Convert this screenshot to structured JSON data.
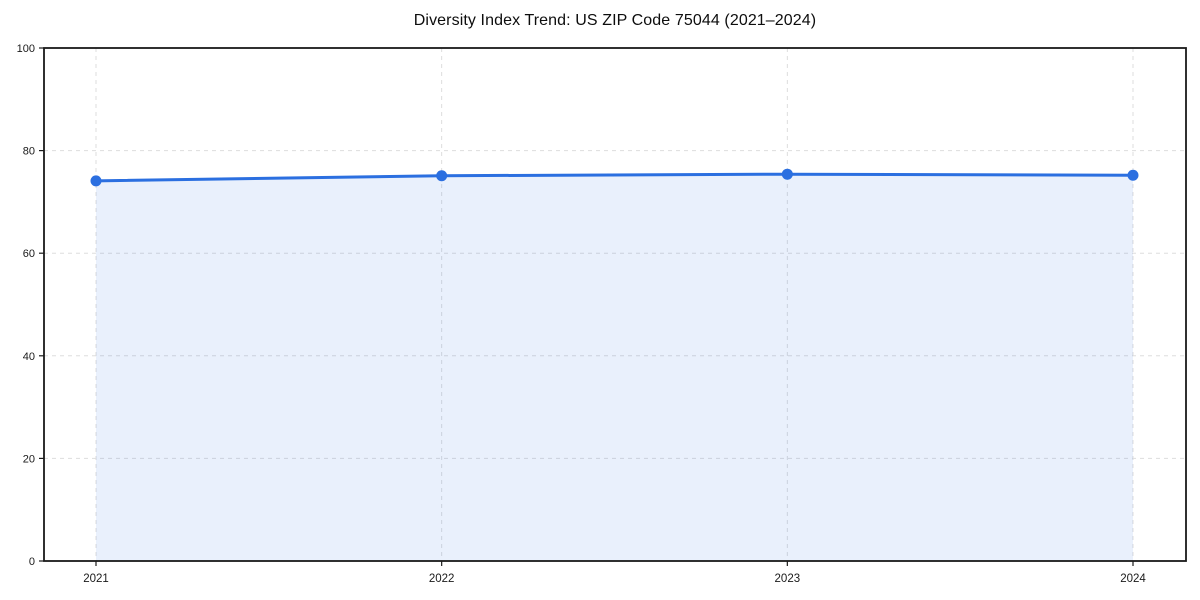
{
  "page": {
    "background": "#ffffff"
  },
  "chart_data": {
    "type": "area",
    "title": "Diversity Index Trend: US ZIP Code 75044 (2021–2024)",
    "x": [
      "2021",
      "2022",
      "2023",
      "2024"
    ],
    "series": [
      {
        "name": "Diversity Index",
        "values": [
          74.1,
          75.1,
          75.4,
          75.2
        ]
      }
    ],
    "xlabel": "",
    "ylabel": "",
    "ylim": [
      0,
      100
    ],
    "yticks": [
      0,
      20,
      40,
      60,
      80,
      100
    ],
    "grid": true,
    "grid_style": "dashed",
    "legend_position": "none",
    "colors": {
      "line": "#2b6fe0",
      "marker": "#2b6fe0",
      "area_fill": "#2b6fe0",
      "area_opacity": 0.1,
      "grid": "#dddddd",
      "spine": "#1a1a1a",
      "tick_label": "#1a1a1a",
      "title": "#0d0d0d",
      "background": "#ffffff"
    }
  }
}
